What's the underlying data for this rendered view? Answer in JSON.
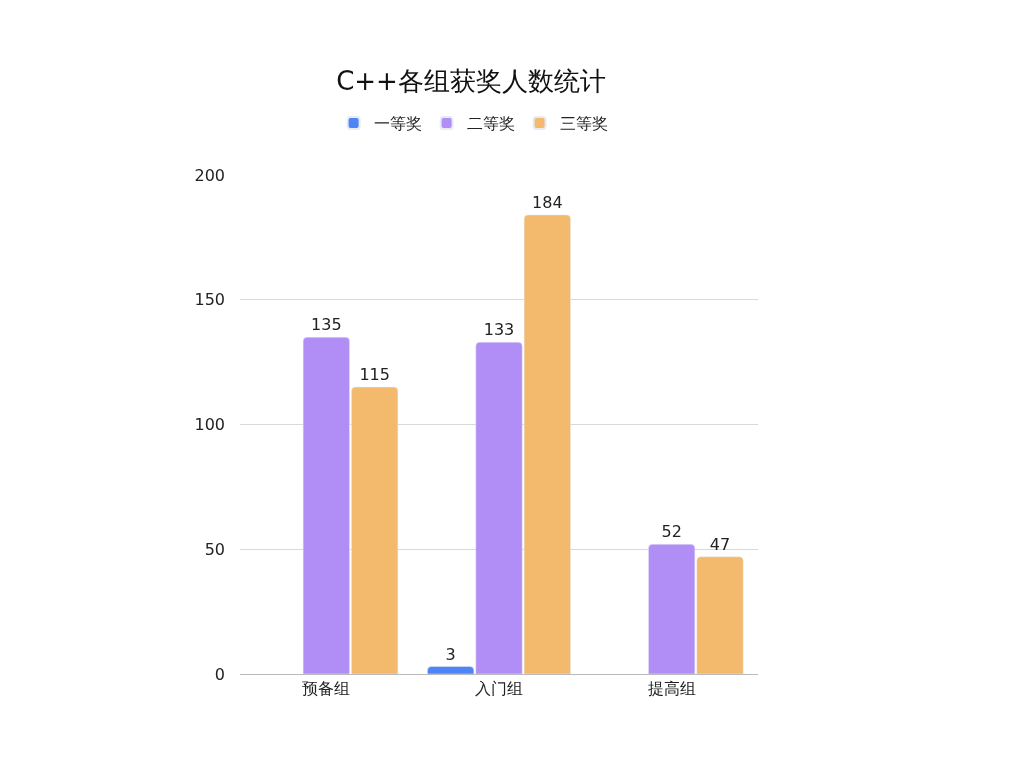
{
  "chart_data": {
    "type": "bar",
    "title": "C++各组获奖人数统计",
    "categories": [
      "预备组",
      "入门组",
      "提高组"
    ],
    "series": [
      {
        "name": "一等奖",
        "color": "#4e84f5",
        "values": [
          null,
          3,
          null
        ]
      },
      {
        "name": "二等奖",
        "color": "#b08ef5",
        "values": [
          135,
          133,
          52
        ]
      },
      {
        "name": "三等奖",
        "color": "#f3b96d",
        "values": [
          115,
          184,
          47
        ]
      }
    ],
    "ylim": [
      0,
      200
    ],
    "yticks": [
      0,
      50,
      100,
      150,
      200
    ],
    "grid": "y",
    "legend": "top",
    "data_labels": true
  }
}
